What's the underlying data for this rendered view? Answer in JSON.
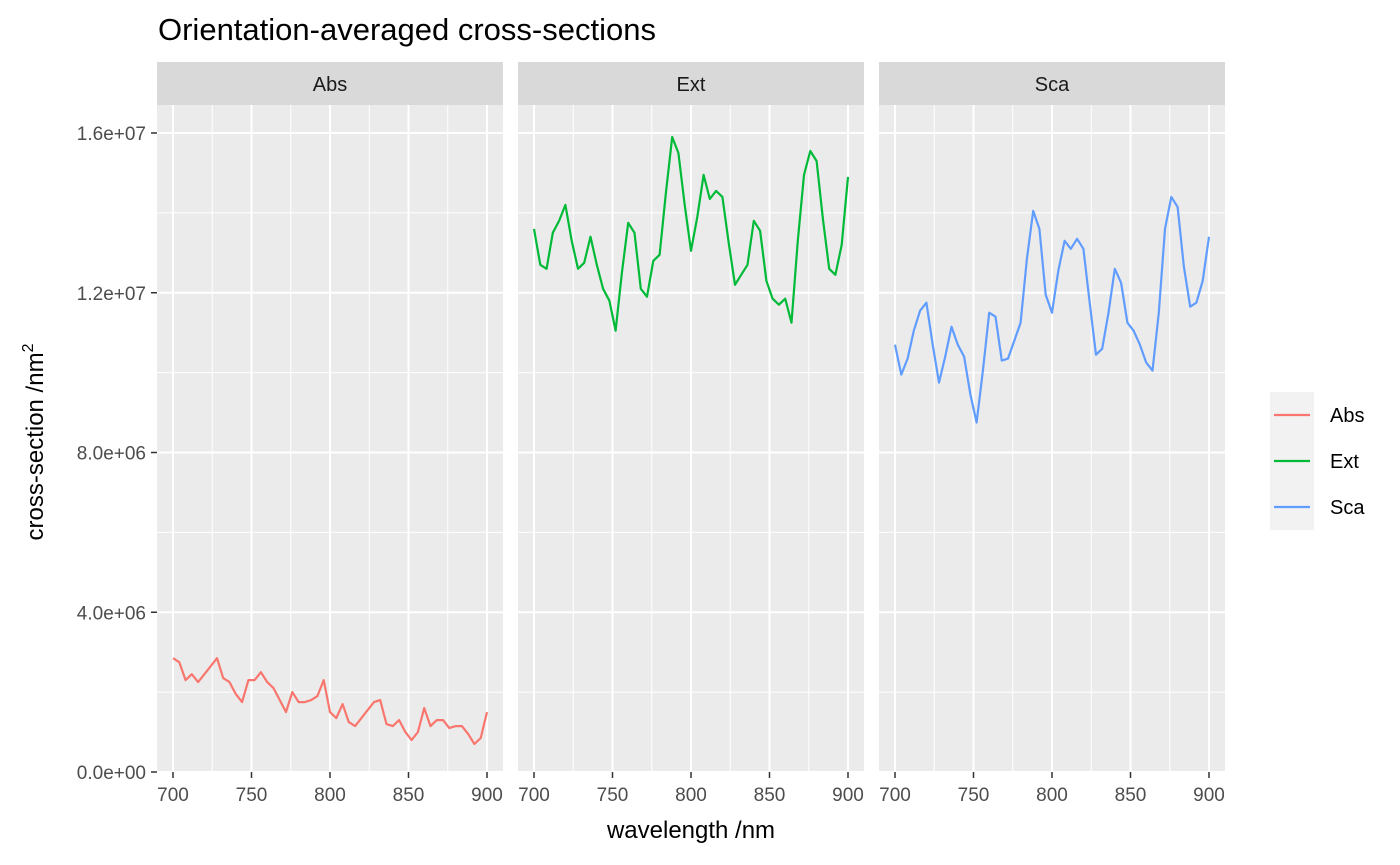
{
  "chart_data": {
    "type": "line",
    "title": "Orientation-averaged cross-sections",
    "xlabel": "wavelength /nm",
    "ylabel_main": "cross-section /nm",
    "ylabel_sup": "2",
    "xlim": [
      700,
      900
    ],
    "ylim": [
      0,
      16000000
    ],
    "x_ticks": [
      700,
      750,
      800,
      850,
      900
    ],
    "x_tick_labels": [
      "700",
      "750",
      "800",
      "850",
      "900"
    ],
    "y_ticks": [
      0,
      4000000,
      8000000,
      12000000,
      16000000
    ],
    "y_tick_labels": [
      "0.0e+00",
      "4.0e+06",
      "8.0e+06",
      "1.2e+07",
      "1.6e+07"
    ],
    "grid": true,
    "legend_position": "right",
    "facets": [
      "Abs",
      "Ext",
      "Sca"
    ],
    "x": [
      700,
      704,
      708,
      712,
      716,
      720,
      724,
      728,
      732,
      736,
      740,
      744,
      748,
      752,
      756,
      760,
      764,
      768,
      772,
      776,
      780,
      784,
      788,
      792,
      796,
      800,
      804,
      808,
      812,
      816,
      820,
      824,
      828,
      832,
      836,
      840,
      844,
      848,
      852,
      856,
      860,
      864,
      868,
      872,
      876,
      880,
      884,
      888,
      892,
      896,
      900
    ],
    "series": [
      {
        "name": "Abs",
        "color": "#F8766D",
        "values": [
          2850000,
          2750000,
          2300000,
          2450000,
          2250000,
          2450000,
          2650000,
          2850000,
          2350000,
          2250000,
          1950000,
          1750000,
          2300000,
          2300000,
          2500000,
          2250000,
          2100000,
          1800000,
          1500000,
          2000000,
          1750000,
          1750000,
          1800000,
          1900000,
          2300000,
          1500000,
          1350000,
          1700000,
          1250000,
          1150000,
          1350000,
          1550000,
          1750000,
          1800000,
          1200000,
          1150000,
          1300000,
          1000000,
          800000,
          1000000,
          1600000,
          1150000,
          1300000,
          1300000,
          1100000,
          1150000,
          1150000,
          950000,
          700000,
          850000,
          1500000
        ]
      },
      {
        "name": "Ext",
        "color": "#00BA38",
        "values": [
          13600000,
          12700000,
          12600000,
          13500000,
          13800000,
          14200000,
          13300000,
          12600000,
          12750000,
          13400000,
          12700000,
          12100000,
          11800000,
          11050000,
          12500000,
          13750000,
          13500000,
          12100000,
          11900000,
          12800000,
          12950000,
          14500000,
          15900000,
          15500000,
          14200000,
          13050000,
          13900000,
          14950000,
          14350000,
          14550000,
          14400000,
          13250000,
          12200000,
          12450000,
          12700000,
          13800000,
          13550000,
          12300000,
          11850000,
          11700000,
          11850000,
          11250000,
          13300000,
          14950000,
          15550000,
          15300000,
          13850000,
          12600000,
          12450000,
          13200000,
          14900000
        ]
      },
      {
        "name": "Sca",
        "color": "#619CFF",
        "values": [
          10700000,
          9950000,
          10350000,
          11050000,
          11550000,
          11750000,
          10700000,
          9750000,
          10400000,
          11150000,
          10700000,
          10400000,
          9450000,
          8750000,
          10050000,
          11500000,
          11400000,
          10300000,
          10350000,
          10800000,
          11250000,
          12850000,
          14050000,
          13600000,
          11950000,
          11500000,
          12550000,
          13300000,
          13100000,
          13350000,
          13100000,
          11750000,
          10450000,
          10600000,
          11500000,
          12600000,
          12250000,
          11250000,
          11050000,
          10700000,
          10250000,
          10050000,
          11500000,
          13600000,
          14400000,
          14150000,
          12650000,
          11650000,
          11750000,
          12300000,
          13400000
        ]
      }
    ]
  }
}
